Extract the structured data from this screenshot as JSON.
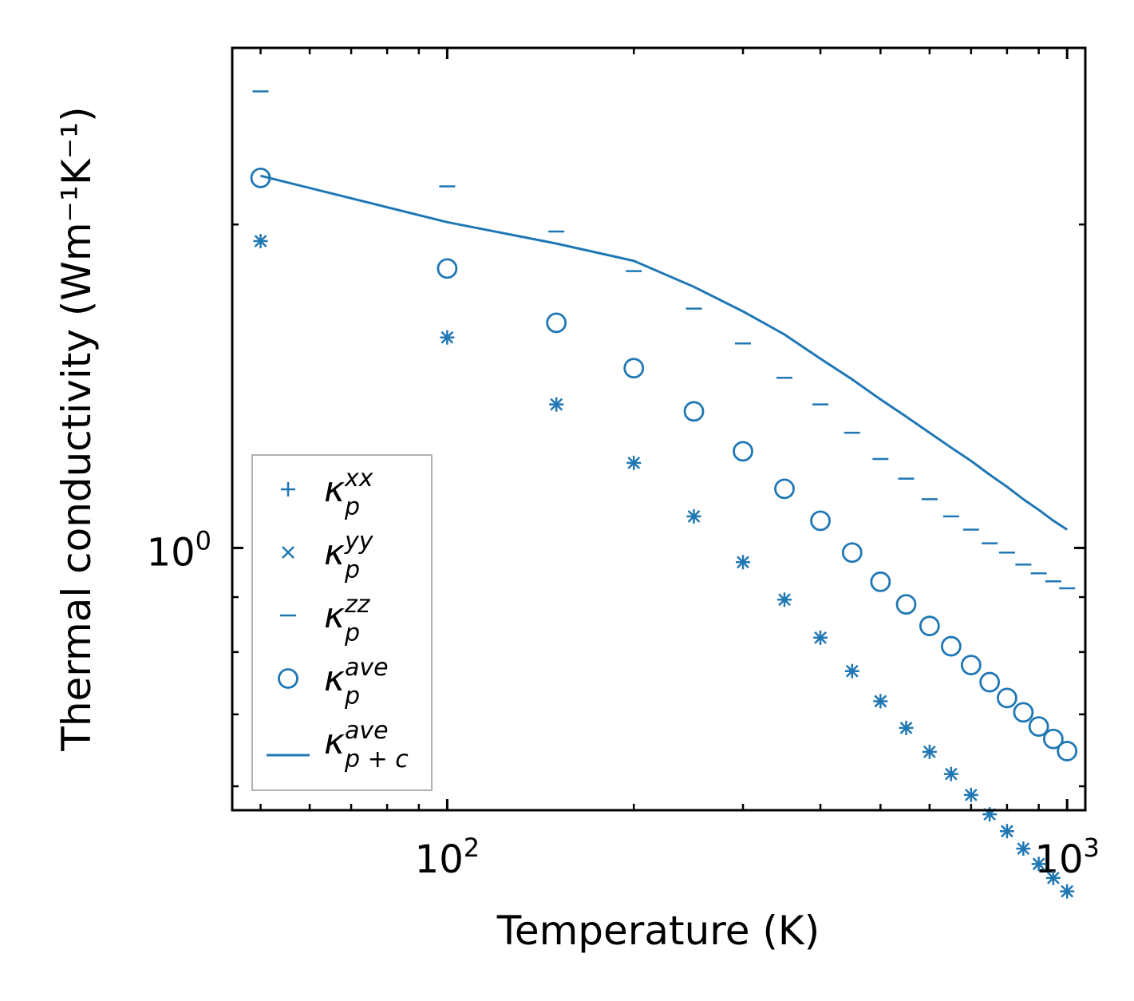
{
  "chart_data": {
    "type": "scatter",
    "scale": {
      "x": "log",
      "y": "log"
    },
    "xlabel": "Temperature (K)",
    "ylabel": "Thermal conductivity (Wm⁻¹K⁻¹)",
    "xlim": [
      45,
      1070
    ],
    "ylim": [
      0.57,
      2.92
    ],
    "x_major_ticks": [
      {
        "value": 100,
        "base": "10",
        "exp": "2"
      },
      {
        "value": 1000,
        "base": "10",
        "exp": "3"
      }
    ],
    "y_major_ticks": [
      {
        "value": 1,
        "base": "10",
        "exp": "0"
      }
    ],
    "color": "#1f77b4",
    "x": [
      50,
      100,
      150,
      200,
      250,
      300,
      350,
      400,
      450,
      500,
      550,
      600,
      650,
      700,
      750,
      800,
      850,
      900,
      950,
      1000
    ],
    "series": [
      {
        "name": "κ_p^xx",
        "legend_base": "κ",
        "legend_sup": "xx",
        "legend_sub": "p",
        "marker": "plus",
        "values": [
          1.93,
          1.57,
          1.36,
          1.2,
          1.07,
          0.97,
          0.895,
          0.825,
          0.768,
          0.72,
          0.68,
          0.646,
          0.616,
          0.589,
          0.565,
          0.545,
          0.525,
          0.508,
          0.493,
          0.479
        ]
      },
      {
        "name": "κ_p^yy",
        "legend_base": "κ",
        "legend_sup": "yy",
        "legend_sub": "p",
        "marker": "x",
        "values": [
          1.93,
          1.57,
          1.36,
          1.2,
          1.07,
          0.97,
          0.895,
          0.825,
          0.768,
          0.72,
          0.68,
          0.646,
          0.616,
          0.589,
          0.565,
          0.545,
          0.525,
          0.508,
          0.493,
          0.479
        ]
      },
      {
        "name": "κ_p^zz",
        "legend_base": "κ",
        "legend_sup": "zz",
        "legend_sub": "p",
        "marker": "hline",
        "values": [
          2.66,
          2.17,
          1.97,
          1.81,
          1.67,
          1.55,
          1.44,
          1.36,
          1.28,
          1.21,
          1.16,
          1.11,
          1.07,
          1.04,
          1.01,
          0.99,
          0.965,
          0.947,
          0.931,
          0.917
        ]
      },
      {
        "name": "κ_p^ave",
        "legend_base": "κ",
        "legend_sup": "ave",
        "legend_sub": "p",
        "marker": "circle",
        "values": [
          2.21,
          1.82,
          1.62,
          1.47,
          1.34,
          1.23,
          1.135,
          1.06,
          0.99,
          0.93,
          0.886,
          0.846,
          0.81,
          0.778,
          0.75,
          0.725,
          0.703,
          0.682,
          0.664,
          0.647
        ]
      },
      {
        "name": "κ_p+c^ave",
        "legend_base": "κ",
        "legend_sup": "ave",
        "legend_sub": "p + c",
        "marker": "line",
        "values": [
          2.22,
          2.01,
          1.92,
          1.85,
          1.75,
          1.66,
          1.58,
          1.5,
          1.435,
          1.375,
          1.325,
          1.28,
          1.24,
          1.205,
          1.17,
          1.14,
          1.11,
          1.085,
          1.06,
          1.04
        ]
      }
    ],
    "legend_position": "lower-left"
  }
}
